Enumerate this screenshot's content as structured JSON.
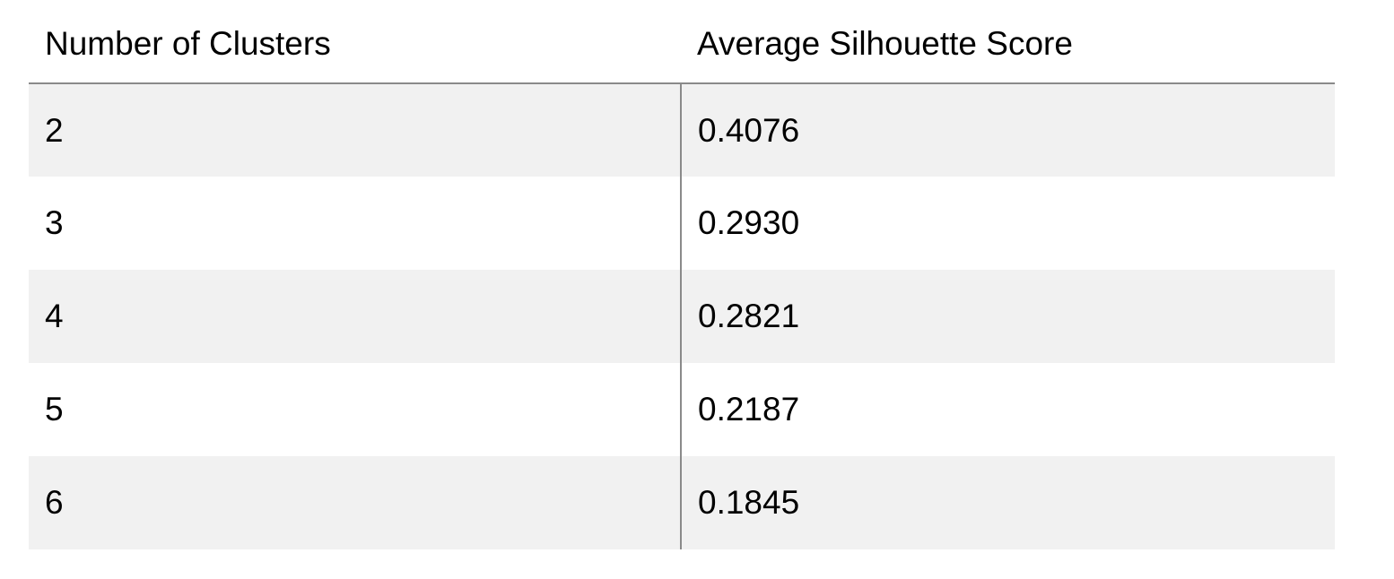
{
  "table": {
    "headers": [
      "Number of Clusters",
      "Average Silhouette Score"
    ],
    "rows": [
      [
        "2",
        "0.4076"
      ],
      [
        "3",
        "0.2930"
      ],
      [
        "4",
        "0.2821"
      ],
      [
        "5",
        "0.2187"
      ],
      [
        "6",
        "0.1845"
      ]
    ]
  }
}
